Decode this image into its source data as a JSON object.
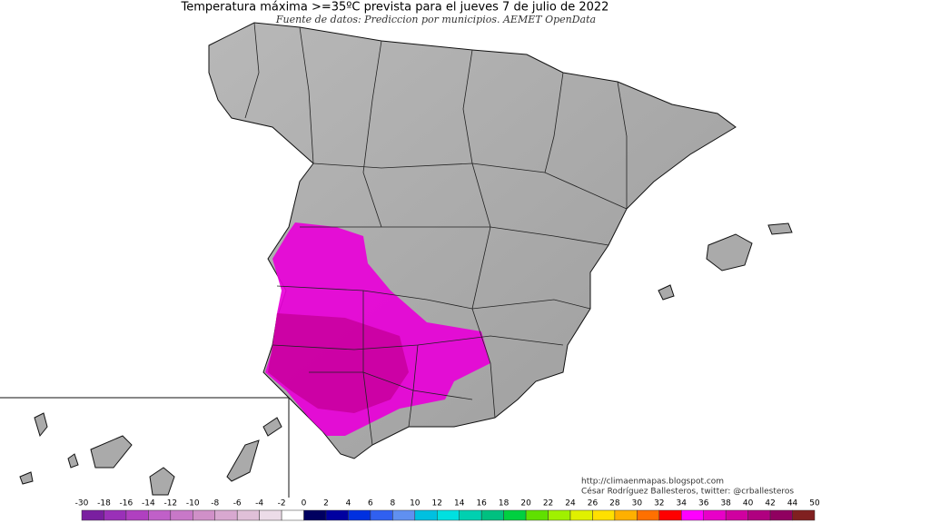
{
  "header": {
    "title": "Temperatura máxima >=35ºC prevista para el jueves 7 de julio de 2022",
    "subtitle": "Fuente de datos: Prediccion por municipios. AEMET OpenData"
  },
  "credits": [
    "http://climaenmapas.blogspot.com",
    "César Rodríguez Ballesteros, twitter: @crballesteros"
  ],
  "colorbar": {
    "ticks": [
      -30,
      -18,
      -16,
      -14,
      -12,
      -10,
      -8,
      -6,
      -4,
      -2,
      0,
      2,
      4,
      6,
      8,
      10,
      12,
      14,
      16,
      18,
      20,
      22,
      24,
      26,
      28,
      30,
      32,
      34,
      36,
      38,
      40,
      42,
      44,
      50
    ],
    "colors": [
      "#7a1fa0",
      "#9a30b8",
      "#b040c0",
      "#c060c8",
      "#c878c8",
      "#d090c8",
      "#d8a8d0",
      "#e0c0d8",
      "#ecdce8",
      "#ffffff",
      "#000060",
      "#0000a0",
      "#0030e0",
      "#3060f0",
      "#6090f0",
      "#00c0e0",
      "#00e0e0",
      "#00d0b0",
      "#00c080",
      "#00d040",
      "#60e000",
      "#a0f000",
      "#e0f000",
      "#ffe000",
      "#ffb000",
      "#ff7000",
      "#ff0000",
      "#ff00ff",
      "#e800c8",
      "#d000a0",
      "#b00080",
      "#900060",
      "#802020"
    ]
  }
}
